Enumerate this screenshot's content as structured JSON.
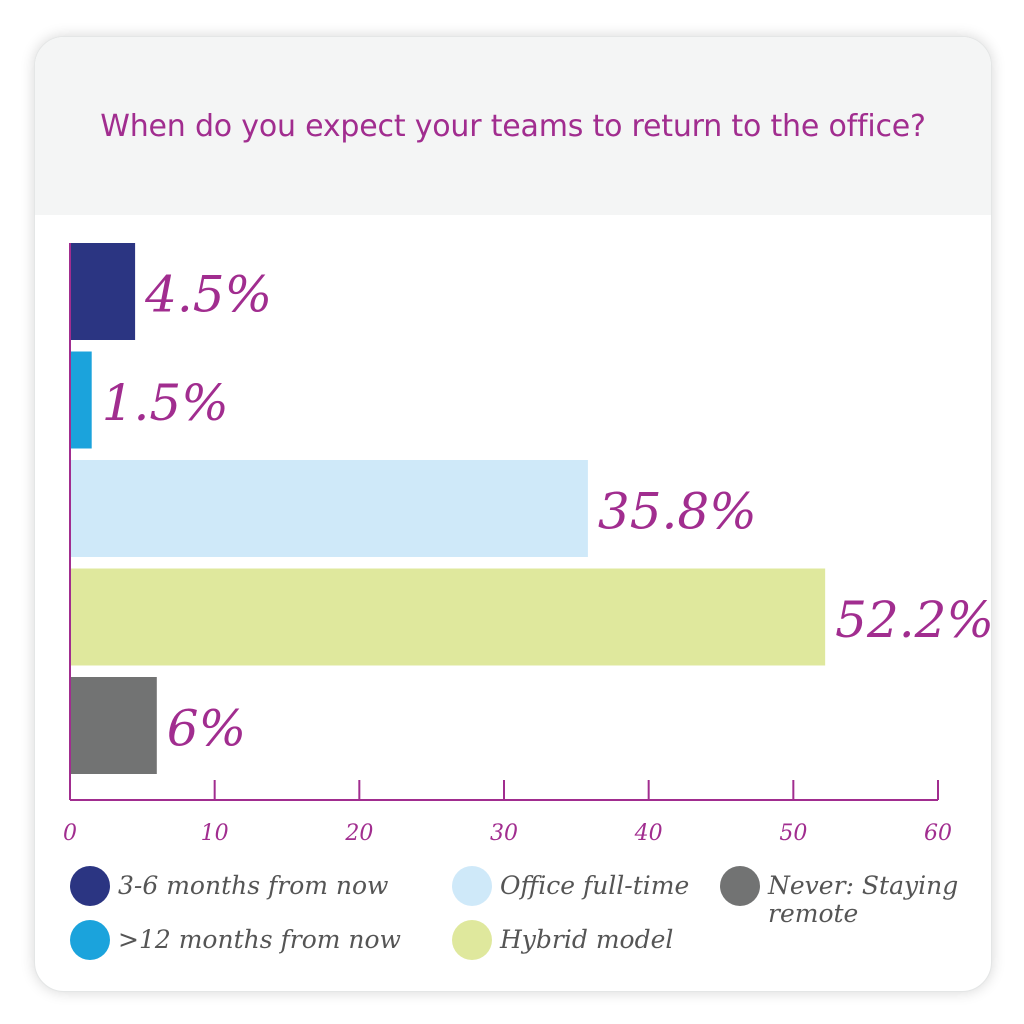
{
  "chart_data": {
    "type": "bar",
    "orientation": "horizontal",
    "title": "When do you expect your teams to return to the office?",
    "categories": [
      "3-6 months from now",
      ">12 months from now",
      "Office full-time",
      "Hybrid model",
      "Never: Staying remote"
    ],
    "values": [
      4.5,
      1.5,
      35.8,
      52.2,
      6
    ],
    "data_labels": [
      "4.5%",
      "1.5%",
      "35.8%",
      "52.2%",
      "6%"
    ],
    "colors": [
      "#2b3582",
      "#1ba3dc",
      "#cfe9f9",
      "#dfe89d",
      "#727373"
    ],
    "xlim": [
      0,
      60
    ],
    "xticks": [
      0,
      10,
      20,
      30,
      40,
      50,
      60
    ],
    "grid": false,
    "legend_position": "bottom",
    "label_color": "#a12d8f",
    "axis_color": "#a12d8f"
  }
}
